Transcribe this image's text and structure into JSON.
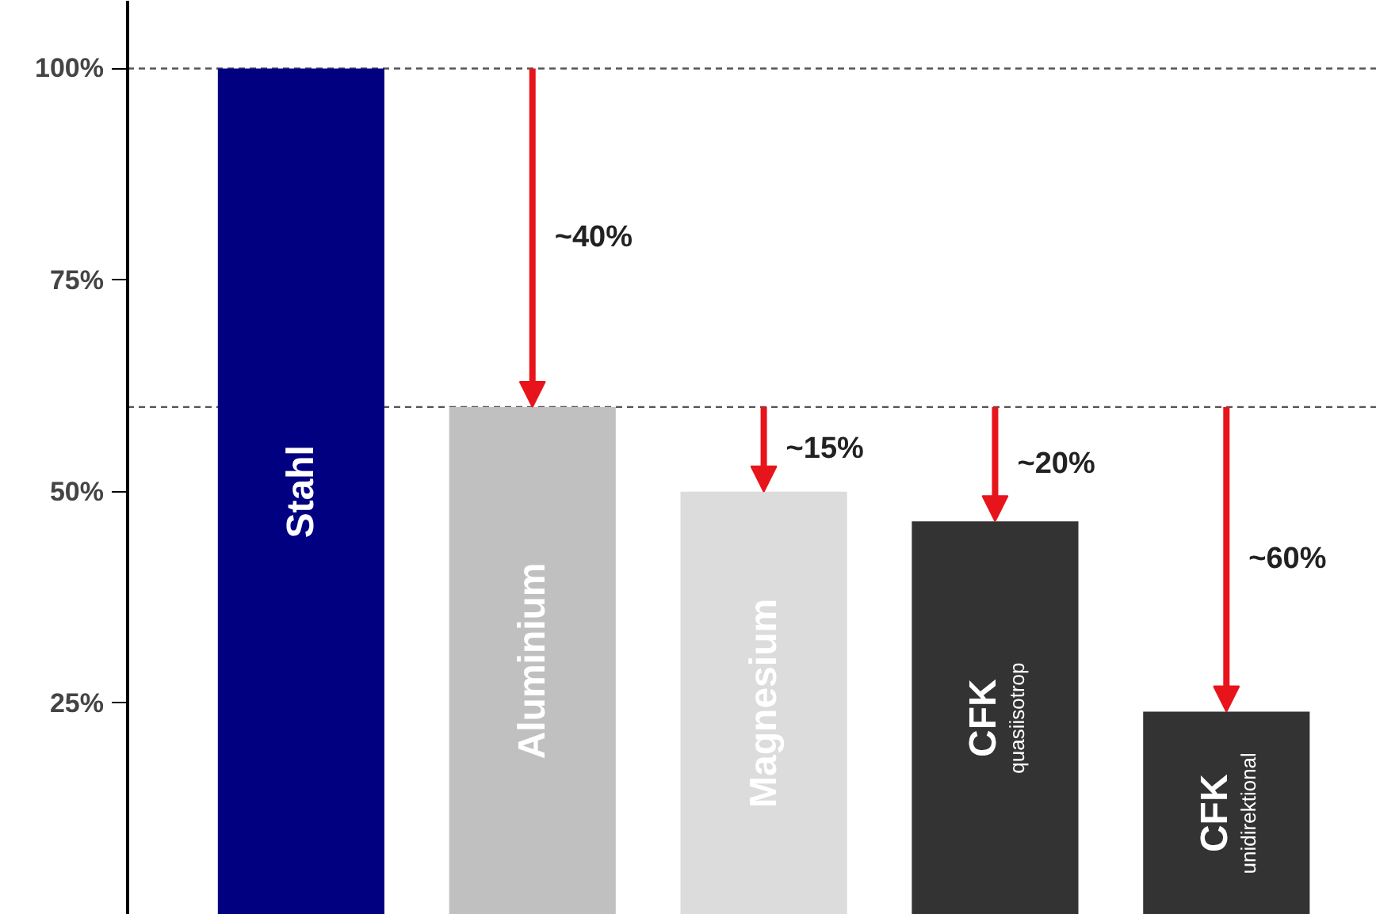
{
  "chart_data": {
    "type": "bar",
    "categories": [
      "Stahl",
      "Aluminium",
      "Magnesium",
      "CFK\nquasiisotrop",
      "CFK\nunidirektional"
    ],
    "values": [
      100,
      60,
      50,
      46.5,
      24
    ],
    "colors": [
      "#000080",
      "#c0c0c0",
      "#dcdcdc",
      "#333333",
      "#333333"
    ],
    "ylim": [
      0,
      108
    ],
    "yticks": [
      {
        "value": 25,
        "label": "25%"
      },
      {
        "value": 50,
        "label": "50%"
      },
      {
        "value": 75,
        "label": "75%"
      },
      {
        "value": 100,
        "label": "100%"
      }
    ],
    "grid": false,
    "ref_lines": [
      {
        "axis": "y",
        "value": 100,
        "line_style": "dashed",
        "color": "#555555"
      },
      {
        "axis": "y",
        "value": 60,
        "line_style": "dashed",
        "color": "#555555"
      }
    ],
    "annotations": [
      "~40%",
      "~15%",
      "~20%",
      "~60%"
    ]
  }
}
